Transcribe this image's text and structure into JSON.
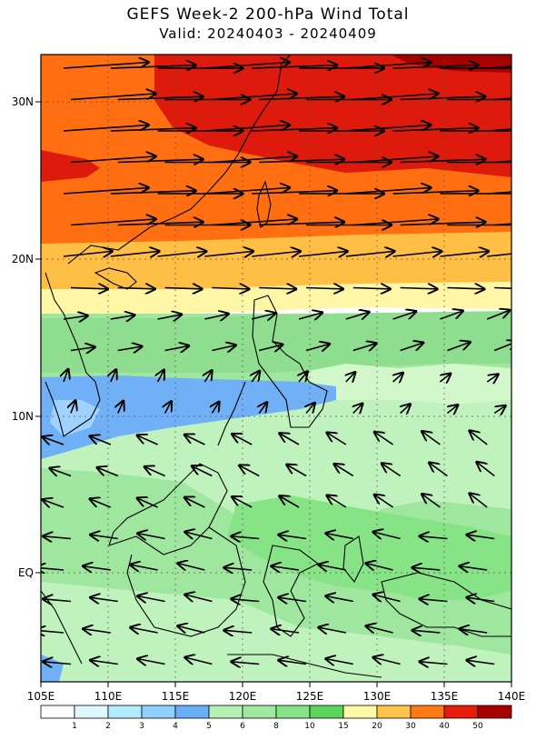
{
  "title": "GEFS Week-2 200-hPa Wind Total",
  "subtitle": "Valid: 20240403 - 20240409",
  "x_ticks": [
    "105E",
    "110E",
    "115E",
    "120E",
    "125E",
    "130E",
    "135E",
    "140E"
  ],
  "y_ticks": [
    "30N",
    "20N",
    "10N",
    "EQ"
  ],
  "colorbar_labels": [
    "1",
    "2",
    "3",
    "4",
    "5",
    "6",
    "8",
    "10",
    "15",
    "20",
    "30",
    "40",
    "50"
  ],
  "colorbar_colors": [
    "#ffffff",
    "#dff8ff",
    "#b4ecff",
    "#8fd0ff",
    "#6aaef8",
    "#b4f0b4",
    "#a0e7a0",
    "#86e486",
    "#5cd35c",
    "#fffaa8",
    "#ffc24a",
    "#ff7a16",
    "#e81c0c",
    "#a80000"
  ],
  "colors": {
    "red": "#dd1a0c",
    "orange_red": "#ff6e10",
    "orange": "#ffbf45",
    "yellow": "#fff6a6",
    "green": "#9fe69f",
    "light_green": "#bff2bc",
    "blue": "#6fb0f6",
    "light_blue": "#9fd2ff",
    "pale_green": "#d2f7cb"
  }
}
